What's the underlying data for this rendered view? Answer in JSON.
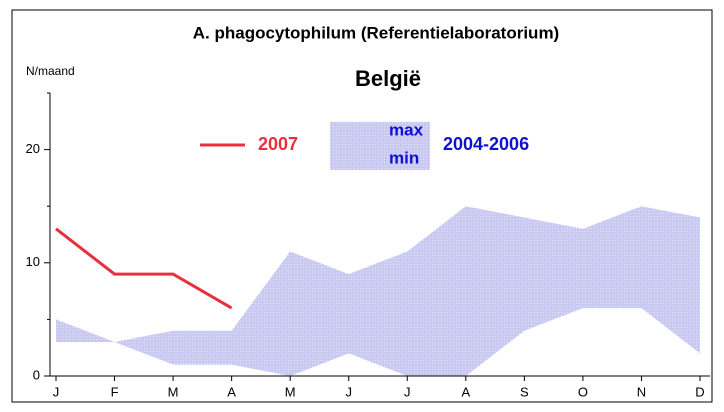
{
  "chart_data": {
    "type": "line",
    "title": "A. phagocytophilum (Referentielaboratorium)",
    "subtitle": "België",
    "y_label": "N/maand",
    "categories": [
      "J",
      "F",
      "M",
      "A",
      "M",
      "J",
      "J",
      "A",
      "S",
      "O",
      "N",
      "D"
    ],
    "series": [
      {
        "name": "2007",
        "color": "#e8303c",
        "values": [
          13,
          9,
          9,
          6,
          null,
          null,
          null,
          null,
          null,
          null,
          null,
          null
        ]
      }
    ],
    "band": {
      "name": "2004-2006",
      "color": "#c9c9f2",
      "upper_label": "max",
      "lower_label": "min",
      "max": [
        5,
        3,
        4,
        4,
        11,
        9,
        11,
        15,
        14,
        13,
        15,
        14
      ],
      "min": [
        3,
        3,
        1,
        1,
        0,
        2,
        0,
        0,
        4,
        6,
        6,
        2
      ]
    },
    "ylim": [
      0,
      25
    ],
    "yticks": [
      0,
      10,
      20
    ],
    "yminorticks": [
      5,
      15,
      25
    ],
    "grid": false
  }
}
